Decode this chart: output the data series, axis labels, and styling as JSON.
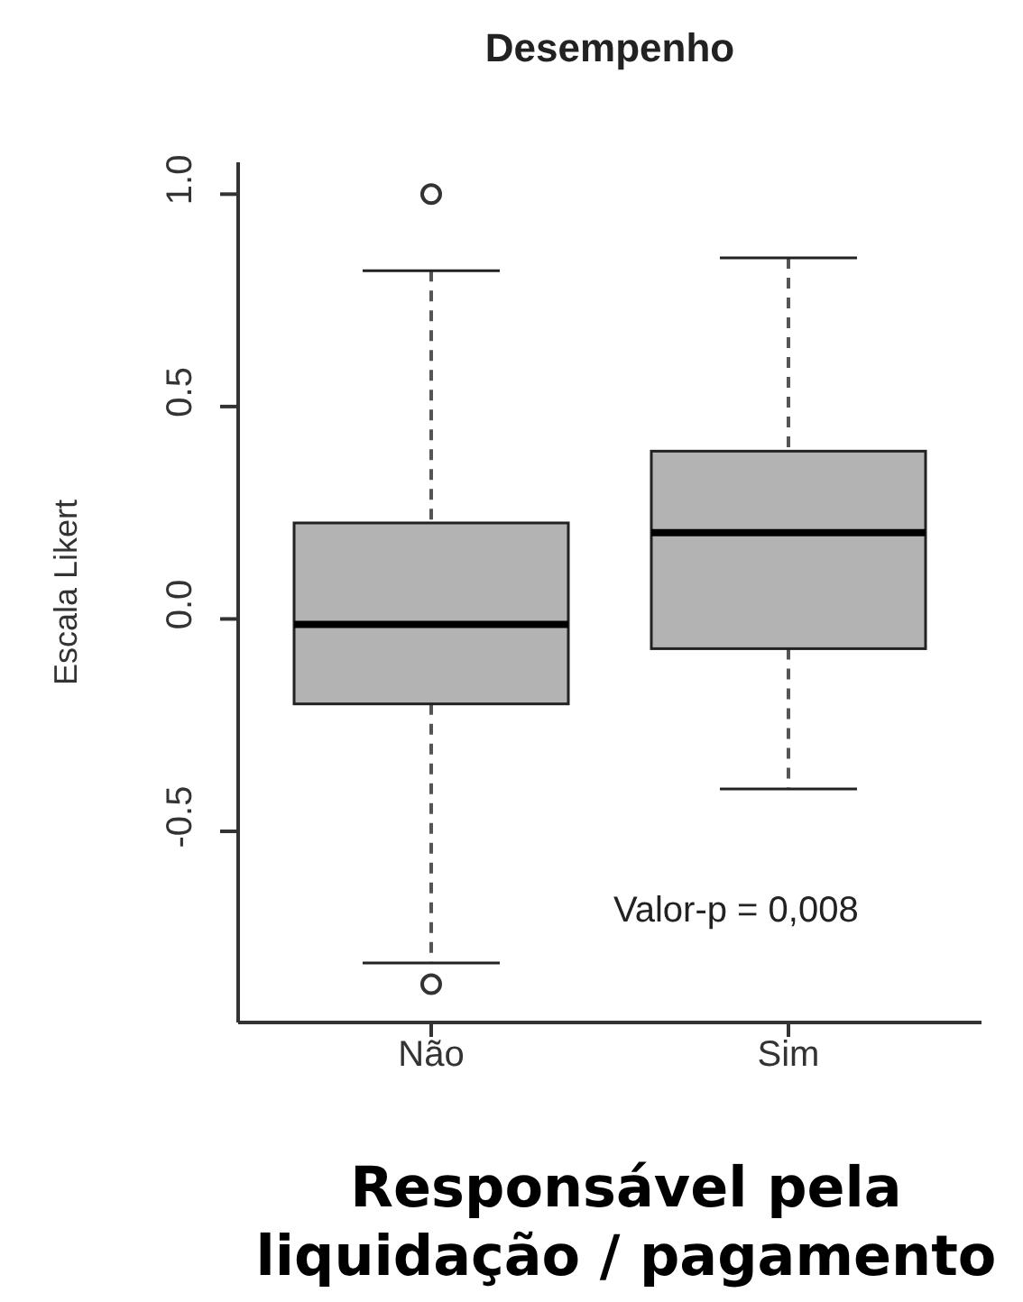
{
  "chart_data": {
    "type": "box",
    "title": "Desempenho",
    "xlabel": "Responsável pela\nliquidação / pagamento",
    "ylabel": "Escala Likert",
    "categories": [
      "Não",
      "Sim"
    ],
    "boxes": [
      {
        "low": -0.81,
        "q1": -0.2,
        "median": -0.013,
        "q3": 0.226,
        "high": 0.82,
        "outliers": [
          1.0,
          -0.86
        ]
      },
      {
        "low": -0.4,
        "q1": -0.07,
        "median": 0.203,
        "q3": 0.395,
        "high": 0.85
      }
    ],
    "color": "#b3b3b3",
    "ylim": [
      -0.95,
      1.075
    ],
    "yticks": [
      {
        "value": -0.5,
        "label": "-0.5"
      },
      {
        "value": 0,
        "label": "0.0"
      },
      {
        "value": 0.5,
        "label": "0.5"
      },
      {
        "value": 1,
        "label": "1.0"
      }
    ],
    "annotations": [
      "Valor-p = 0,008"
    ]
  }
}
